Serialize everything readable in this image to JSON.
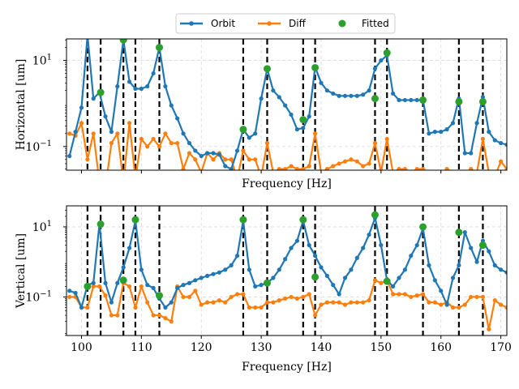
{
  "legend": {
    "entries": [
      {
        "label": "Orbit",
        "color": "#1f77b4",
        "marker": "line-dot"
      },
      {
        "label": "Diff",
        "color": "#ff7f0e",
        "marker": "line-dot"
      },
      {
        "label": "Fitted",
        "color": "#2ca02c",
        "marker": "dot"
      }
    ]
  },
  "colors": {
    "orbit": "#1f77b4",
    "diff": "#ff7f0e",
    "fitted": "#2ca02c",
    "vline": "#000000"
  },
  "chart_data": [
    {
      "type": "line",
      "ylabel": "Horizontal [um]",
      "xlabel": "Frequency [Hz]",
      "xlim": [
        97.5,
        171
      ],
      "ylim_log10": [
        -1.55,
        1.5
      ],
      "yscale": "log",
      "yticks": [
        {
          "label": "10",
          "exp": "1",
          "value": 10
        },
        {
          "label": "10",
          "exp": "−1",
          "value": 0.1
        }
      ],
      "xtick_values": [
        100,
        110,
        120,
        130,
        140,
        150,
        160,
        170
      ],
      "show_xtick_labels": false,
      "grid": true,
      "vlines": [
        101,
        103.2,
        107,
        109,
        113,
        127,
        131,
        137,
        139,
        149,
        151,
        157,
        163,
        167
      ],
      "series": [
        {
          "name": "Orbit",
          "x": [
            98,
            99,
            100,
            101,
            102,
            103,
            104,
            105,
            106,
            107,
            108,
            109,
            110,
            111,
            112,
            113,
            114,
            115,
            116,
            117,
            118,
            119,
            120,
            121,
            122,
            123,
            124,
            125,
            126,
            127,
            128,
            129,
            130,
            131,
            132,
            133,
            134,
            135,
            136,
            137,
            138,
            139,
            140,
            141,
            142,
            143,
            144,
            145,
            146,
            147,
            148,
            149,
            150,
            151,
            152,
            153,
            154,
            155,
            156,
            157,
            158,
            159,
            160,
            161,
            162,
            163,
            164,
            165,
            166,
            167,
            168,
            169,
            170,
            171
          ],
          "y": [
            0.06,
            0.22,
            0.8,
            38,
            1.3,
            1.8,
            0.5,
            0.22,
            2.5,
            30,
            3.2,
            2.2,
            2.2,
            2.5,
            5,
            20,
            2.5,
            0.9,
            0.45,
            0.2,
            0.12,
            0.08,
            0.06,
            0.07,
            0.07,
            0.065,
            0.035,
            0.03,
            0.08,
            0.25,
            0.16,
            0.2,
            1.3,
            6.4,
            2,
            1.4,
            0.9,
            0.55,
            0.25,
            0.27,
            0.5,
            7,
            3,
            2,
            1.7,
            1.5,
            1.5,
            1.5,
            1.5,
            1.6,
            2,
            6.5,
            10,
            13,
            1.7,
            1.2,
            1.2,
            1.2,
            1.2,
            1.2,
            0.2,
            0.22,
            0.22,
            0.25,
            0.35,
            1.3,
            0.07,
            0.07,
            0.35,
            1.4,
            0.22,
            0.14,
            0.12,
            0.11
          ]
        },
        {
          "name": "Diff",
          "x": [
            98,
            99,
            100,
            101,
            102,
            103,
            104,
            105,
            106,
            107,
            108,
            109,
            110,
            111,
            112,
            113,
            114,
            115,
            116,
            117,
            118,
            119,
            120,
            121,
            122,
            123,
            124,
            125,
            126,
            127,
            128,
            129,
            130,
            131,
            132,
            133,
            134,
            135,
            136,
            137,
            138,
            139,
            140,
            141,
            142,
            143,
            144,
            145,
            146,
            147,
            148,
            149,
            150,
            151,
            152,
            153,
            154,
            155,
            156,
            157,
            158,
            159,
            160,
            161,
            162,
            163,
            164,
            165,
            166,
            167,
            168,
            169,
            170,
            171
          ],
          "y": [
            0.2,
            0.18,
            0.35,
            0.05,
            0.2,
            0.015,
            0.011,
            0.12,
            0.2,
            0.015,
            0.35,
            0.018,
            0.15,
            0.1,
            0.15,
            0.1,
            0.2,
            0.12,
            0.12,
            0.03,
            0.07,
            0.05,
            0.025,
            0.07,
            0.05,
            0.07,
            0.05,
            0.05,
            0.018,
            0.08,
            0.05,
            0.05,
            0.02,
            0.12,
            0.025,
            0.03,
            0.03,
            0.035,
            0.03,
            0.03,
            0.035,
            0.2,
            0.025,
            0.03,
            0.035,
            0.04,
            0.045,
            0.05,
            0.045,
            0.035,
            0.04,
            0.12,
            0.025,
            0.15,
            0.025,
            0.03,
            0.03,
            0.025,
            0.03,
            0.03,
            0.025,
            0.025,
            0.02,
            0.03,
            0.025,
            0.02,
            0.02,
            0.03,
            0.025,
            0.15,
            0.025,
            0.02,
            0.045,
            0.03
          ]
        },
        {
          "name": "Fitted",
          "marker_only": true,
          "x": [
            101,
            103.2,
            107,
            109,
            113,
            127,
            131,
            137,
            139,
            149,
            151,
            157,
            163,
            167
          ],
          "y": [
            38,
            1.8,
            30,
            0.018,
            20,
            0.25,
            6.4,
            0.42,
            6.8,
            1.3,
            15,
            1.2,
            1.1,
            1.1
          ]
        }
      ]
    },
    {
      "type": "line",
      "ylabel": "Vertical [um]",
      "xlabel": "Frequency [Hz]",
      "xlim": [
        97.5,
        171
      ],
      "ylim_log10": [
        -2.1,
        1.6
      ],
      "yscale": "log",
      "yticks": [
        {
          "label": "10",
          "exp": "1",
          "value": 10
        },
        {
          "label": "10",
          "exp": "−1",
          "value": 0.1
        }
      ],
      "xtick_values": [
        100,
        110,
        120,
        130,
        140,
        150,
        160,
        170
      ],
      "show_xtick_labels": true,
      "grid": true,
      "vlines": [
        101,
        103.2,
        107,
        109,
        113,
        127,
        131,
        137,
        139,
        149,
        151,
        157,
        163,
        167
      ],
      "series": [
        {
          "name": "Orbit",
          "x": [
            98,
            99,
            100,
            101,
            102,
            103,
            104,
            105,
            106,
            107,
            108,
            109,
            110,
            111,
            112,
            113,
            114,
            115,
            116,
            117,
            118,
            119,
            120,
            121,
            122,
            123,
            124,
            125,
            126,
            127,
            128,
            129,
            130,
            131,
            132,
            133,
            134,
            135,
            136,
            137,
            138,
            139,
            140,
            141,
            142,
            143,
            144,
            145,
            146,
            147,
            148,
            149,
            150,
            151,
            152,
            153,
            154,
            155,
            156,
            157,
            158,
            159,
            160,
            161,
            162,
            163,
            164,
            165,
            166,
            167,
            168,
            169,
            170,
            171
          ],
          "y": [
            0.15,
            0.13,
            0.05,
            0.22,
            0.25,
            12,
            0.25,
            0.07,
            0.25,
            0.7,
            2.5,
            15,
            0.6,
            0.22,
            0.18,
            0.09,
            0.05,
            0.07,
            0.18,
            0.22,
            0.25,
            0.3,
            0.35,
            0.4,
            0.45,
            0.5,
            0.6,
            0.8,
            1.5,
            15,
            0.6,
            0.2,
            0.22,
            0.25,
            0.35,
            0.6,
            1.2,
            2.5,
            4,
            15,
            3,
            1.5,
            0.7,
            0.4,
            0.22,
            0.12,
            0.35,
            0.6,
            1.3,
            2.5,
            6,
            18,
            3,
            0.3,
            0.2,
            0.35,
            0.6,
            1.5,
            3,
            9,
            0.8,
            0.3,
            0.15,
            0.06,
            0.35,
            0.8,
            7,
            2.5,
            1,
            4,
            2,
            0.8,
            0.6,
            0.5
          ]
        },
        {
          "name": "Diff",
          "x": [
            98,
            99,
            100,
            101,
            102,
            103,
            104,
            105,
            106,
            107,
            108,
            109,
            110,
            111,
            112,
            113,
            114,
            115,
            116,
            117,
            118,
            119,
            120,
            121,
            122,
            123,
            124,
            125,
            126,
            127,
            128,
            129,
            130,
            131,
            132,
            133,
            134,
            135,
            136,
            137,
            138,
            139,
            140,
            141,
            142,
            143,
            144,
            145,
            146,
            147,
            148,
            149,
            150,
            151,
            152,
            153,
            154,
            155,
            156,
            157,
            158,
            159,
            160,
            161,
            162,
            163,
            164,
            165,
            166,
            167,
            168,
            169,
            170,
            171
          ],
          "y": [
            0.1,
            0.1,
            0.05,
            0.05,
            0.2,
            0.2,
            0.11,
            0.03,
            0.03,
            0.25,
            0.2,
            0.05,
            0.2,
            0.07,
            0.03,
            0.03,
            0.025,
            0.02,
            0.2,
            0.1,
            0.1,
            0.15,
            0.06,
            0.07,
            0.07,
            0.08,
            0.07,
            0.1,
            0.12,
            0.12,
            0.05,
            0.05,
            0.05,
            0.07,
            0.07,
            0.08,
            0.09,
            0.1,
            0.09,
            0.1,
            0.12,
            0.03,
            0.06,
            0.07,
            0.07,
            0.07,
            0.06,
            0.07,
            0.07,
            0.07,
            0.08,
            0.3,
            0.25,
            0.3,
            0.12,
            0.12,
            0.12,
            0.1,
            0.11,
            0.12,
            0.07,
            0.07,
            0.06,
            0.07,
            0.05,
            0.05,
            0.06,
            0.1,
            0.1,
            0.1,
            0.012,
            0.08,
            0.06,
            0.05
          ]
        },
        {
          "name": "Fitted",
          "marker_only": true,
          "x": [
            101,
            103.2,
            107,
            109,
            113,
            127,
            131,
            137,
            139,
            149,
            151,
            157,
            163,
            167
          ],
          "y": [
            0.2,
            12,
            0.3,
            16,
            0.11,
            16,
            0.25,
            16,
            0.37,
            22,
            0.28,
            10,
            7,
            3
          ]
        }
      ]
    }
  ]
}
